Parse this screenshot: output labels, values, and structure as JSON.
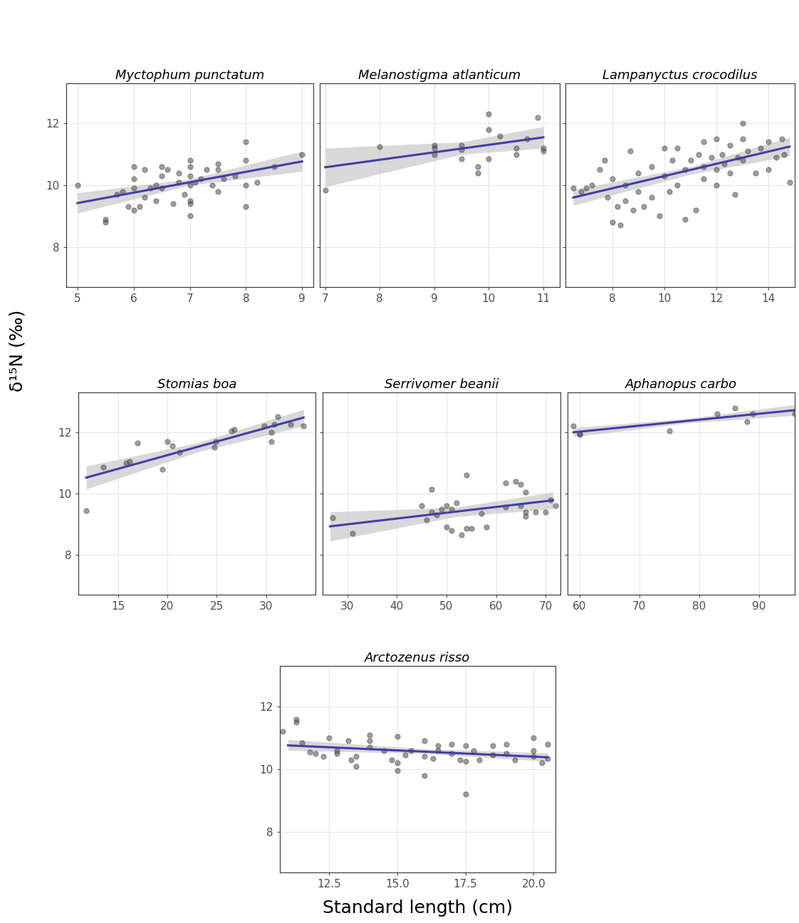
{
  "ylabel": "δ¹⁵N (‰)",
  "xlabel": "Standard length (cm)",
  "chart_data": [
    {
      "type": "scatter",
      "title": "Myctophum punctatum",
      "grid": true,
      "tick_labels": true,
      "xlim": [
        4.8,
        9.2
      ],
      "xticks": [
        5,
        6,
        7,
        8,
        9
      ],
      "ylim": [
        6.7,
        13.3
      ],
      "yticks": [
        8,
        10,
        12
      ],
      "series": [
        {
          "type": "area",
          "color": "#c8c8c8",
          "x": [
            5,
            7,
            9
          ],
          "lower": [
            9.1,
            10.0,
            10.45
          ],
          "upper": [
            9.75,
            10.2,
            11.1
          ]
        },
        {
          "type": "scatter",
          "color": "#4d4d4d",
          "marker": "o",
          "x": [
            5.0,
            5.5,
            5.5,
            5.7,
            5.8,
            5.9,
            6.0,
            6.0,
            6.0,
            6.0,
            6.1,
            6.2,
            6.2,
            6.3,
            6.4,
            6.4,
            6.5,
            6.5,
            6.5,
            6.6,
            6.7,
            6.8,
            6.8,
            6.9,
            7.0,
            7.0,
            7.0,
            7.0,
            7.0,
            7.0,
            7.0,
            7.1,
            7.2,
            7.3,
            7.4,
            7.5,
            7.5,
            7.5,
            7.6,
            7.8,
            8.0,
            8.0,
            8.0,
            8.0,
            8.2,
            8.5,
            9.0
          ],
          "values": [
            10.0,
            8.8,
            8.9,
            9.7,
            9.8,
            9.3,
            9.2,
            9.9,
            10.2,
            10.6,
            9.3,
            10.5,
            9.6,
            9.9,
            10.0,
            9.5,
            10.6,
            10.3,
            9.9,
            10.5,
            9.4,
            10.1,
            10.4,
            9.7,
            10.8,
            10.6,
            10.3,
            10.0,
            9.5,
            9.0,
            9.4,
            10.1,
            10.2,
            10.5,
            10.0,
            10.7,
            10.5,
            9.8,
            10.2,
            10.3,
            11.4,
            10.8,
            10.0,
            9.3,
            10.1,
            10.6,
            11.0
          ]
        },
        {
          "type": "line",
          "color": "#3f3fa8",
          "line_style": "solid",
          "x": [
            5,
            9
          ],
          "values": [
            9.42,
            10.77
          ]
        }
      ]
    },
    {
      "type": "scatter",
      "title": "Melanostigma atlanticum",
      "grid": true,
      "tick_labels": "x",
      "xlim": [
        6.9,
        11.3
      ],
      "xticks": [
        7,
        8,
        9,
        10,
        11
      ],
      "ylim": [
        6.7,
        13.3
      ],
      "yticks": [
        8,
        10,
        12
      ],
      "series": [
        {
          "type": "area",
          "color": "#c8c8c8",
          "x": [
            7,
            9.5,
            11
          ],
          "lower": [
            9.95,
            11.0,
            11.2
          ],
          "upper": [
            11.2,
            11.4,
            11.9
          ]
        },
        {
          "type": "scatter",
          "color": "#4d4d4d",
          "marker": "o",
          "x": [
            7.0,
            8.0,
            9.0,
            9.0,
            9.0,
            9.5,
            9.5,
            9.5,
            9.8,
            9.8,
            10.0,
            10.0,
            10.0,
            10.2,
            10.5,
            10.5,
            10.7,
            10.9,
            11.0,
            11.0
          ],
          "values": [
            9.85,
            11.25,
            11.3,
            11.2,
            11.0,
            11.3,
            11.15,
            10.85,
            10.6,
            10.4,
            12.3,
            11.8,
            10.85,
            11.6,
            11.2,
            11.0,
            11.5,
            12.2,
            11.2,
            11.1
          ]
        },
        {
          "type": "line",
          "color": "#3f3fa8",
          "line_style": "solid",
          "x": [
            7,
            11
          ],
          "values": [
            10.58,
            11.55
          ]
        }
      ]
    },
    {
      "type": "scatter",
      "title": "Lampanyctus crocodilus",
      "grid": true,
      "tick_labels": "x",
      "xlim": [
        6.2,
        15.0
      ],
      "xticks": [
        8,
        10,
        12,
        14
      ],
      "ylim": [
        6.7,
        13.3
      ],
      "yticks": [
        8,
        10,
        12
      ],
      "series": [
        {
          "type": "area",
          "color": "#c8c8c8",
          "x": [
            6.5,
            11,
            14.8
          ],
          "lower": [
            9.35,
            10.35,
            10.95
          ],
          "upper": [
            9.85,
            10.6,
            11.55
          ]
        },
        {
          "type": "scatter",
          "color": "#4d4d4d",
          "marker": "o",
          "x": [
            6.5,
            6.8,
            7.0,
            7.2,
            7.5,
            7.7,
            7.8,
            8.0,
            8.0,
            8.2,
            8.3,
            8.5,
            8.5,
            8.7,
            8.8,
            9.0,
            9.0,
            9.2,
            9.5,
            9.5,
            9.8,
            10.0,
            10.0,
            10.2,
            10.3,
            10.5,
            10.5,
            10.8,
            10.8,
            11.0,
            11.2,
            11.3,
            11.5,
            11.5,
            11.5,
            11.8,
            12.0,
            12.0,
            12.0,
            12.2,
            12.3,
            12.5,
            12.5,
            12.7,
            12.8,
            13.0,
            13.0,
            13.0,
            13.2,
            13.5,
            13.7,
            14.0,
            14.0,
            14.3,
            14.5,
            14.6,
            14.8
          ],
          "values": [
            9.9,
            9.8,
            9.9,
            10.0,
            10.5,
            10.8,
            9.6,
            8.8,
            10.2,
            9.3,
            8.7,
            9.5,
            10.0,
            11.1,
            9.2,
            9.8,
            10.4,
            9.3,
            9.6,
            10.6,
            9.0,
            10.3,
            11.2,
            9.8,
            10.8,
            11.2,
            10.0,
            8.9,
            10.5,
            10.8,
            9.2,
            11.0,
            10.6,
            11.4,
            10.2,
            10.9,
            11.5,
            10.5,
            10.0,
            11.0,
            10.7,
            11.3,
            10.4,
            9.7,
            10.9,
            12.0,
            11.5,
            10.8,
            11.1,
            10.4,
            11.2,
            11.4,
            10.5,
            10.9,
            11.5,
            11.0,
            10.1
          ]
        },
        {
          "type": "line",
          "color": "#3f3fa8",
          "line_style": "solid",
          "x": [
            6.5,
            14.8
          ],
          "values": [
            9.6,
            11.25
          ]
        }
      ]
    },
    {
      "type": "scatter",
      "title": "Stomias boa",
      "grid": true,
      "tick_labels": true,
      "xlim": [
        11,
        35
      ],
      "xticks": [
        15,
        20,
        25,
        30
      ],
      "ylim": [
        6.7,
        13.3
      ],
      "yticks": [
        8,
        10,
        12
      ],
      "series": [
        {
          "type": "area",
          "color": "#c8c8c8",
          "x": [
            11.8,
            23,
            33.8
          ],
          "lower": [
            10.15,
            11.35,
            12.2
          ],
          "upper": [
            10.9,
            11.65,
            12.75
          ]
        },
        {
          "type": "scatter",
          "color": "#4d4d4d",
          "marker": "o",
          "x": [
            11.8,
            13.5,
            15.8,
            16.2,
            17.0,
            19.5,
            20.0,
            20.5,
            21.2,
            24.8,
            24.9,
            26.5,
            26.8,
            29.8,
            30.5,
            30.5,
            30.8,
            31.2,
            32.5,
            33.8
          ],
          "values": [
            9.45,
            10.85,
            11.0,
            11.05,
            11.65,
            10.8,
            11.7,
            11.55,
            11.35,
            11.5,
            11.7,
            12.05,
            12.1,
            12.2,
            11.7,
            12.0,
            12.25,
            12.5,
            12.25,
            12.2
          ]
        },
        {
          "type": "line",
          "color": "#3f3fa8",
          "line_style": "solid",
          "x": [
            11.8,
            33.8
          ],
          "values": [
            10.52,
            12.48
          ]
        }
      ]
    },
    {
      "type": "scatter",
      "title": "Serrivomer beanii",
      "grid": true,
      "tick_labels": "x",
      "xlim": [
        25,
        73
      ],
      "xticks": [
        30,
        40,
        50,
        60,
        70
      ],
      "ylim": [
        6.7,
        13.3
      ],
      "yticks": [
        8,
        10,
        12
      ],
      "series": [
        {
          "type": "area",
          "color": "#c8c8c8",
          "x": [
            26.5,
            52,
            71.5
          ],
          "lower": [
            8.45,
            9.25,
            9.5
          ],
          "upper": [
            9.4,
            9.55,
            10.05
          ]
        },
        {
          "type": "scatter",
          "color": "#4d4d4d",
          "marker": "o",
          "x": [
            27,
            31,
            45,
            46,
            47,
            47,
            48,
            49,
            50,
            50,
            51,
            51,
            52,
            53,
            54,
            54,
            55,
            57,
            58,
            62,
            62,
            64,
            65,
            65,
            66,
            66,
            66,
            68,
            70,
            71,
            72
          ],
          "values": [
            9.2,
            8.7,
            9.6,
            9.15,
            10.15,
            9.4,
            9.3,
            9.5,
            9.6,
            8.9,
            8.8,
            9.5,
            9.7,
            8.65,
            10.6,
            8.85,
            8.85,
            9.35,
            8.9,
            10.35,
            9.55,
            10.4,
            10.3,
            9.6,
            10.05,
            9.4,
            9.25,
            9.4,
            9.4,
            9.8,
            9.6
          ]
        },
        {
          "type": "line",
          "color": "#3f3fa8",
          "line_style": "solid",
          "x": [
            26.5,
            71.5
          ],
          "values": [
            8.93,
            9.78
          ]
        }
      ]
    },
    {
      "type": "scatter",
      "title": "Aphanopus carbo",
      "grid": true,
      "tick_labels": "x",
      "xlim": [
        58,
        96
      ],
      "xticks": [
        60,
        70,
        80,
        90
      ],
      "ylim": [
        6.7,
        13.3
      ],
      "yticks": [
        8,
        10,
        12
      ],
      "series": [
        {
          "type": "area",
          "color": "#c8c8c8",
          "x": [
            59,
            78,
            96
          ],
          "lower": [
            11.85,
            12.3,
            12.55
          ],
          "upper": [
            12.15,
            12.45,
            12.9
          ]
        },
        {
          "type": "scatter",
          "color": "#4d4d4d",
          "marker": "o",
          "x": [
            59,
            60,
            60,
            75,
            83,
            86,
            88,
            89,
            96
          ],
          "values": [
            12.2,
            11.95,
            11.92,
            12.05,
            12.6,
            12.8,
            12.35,
            12.6,
            12.6
          ]
        },
        {
          "type": "line",
          "color": "#3f3fa8",
          "line_style": "solid",
          "x": [
            59,
            96
          ],
          "values": [
            12.0,
            12.72
          ]
        }
      ]
    },
    {
      "type": "scatter",
      "title": "Arctozenus risso",
      "grid": true,
      "tick_labels": true,
      "xlim": [
        10.7,
        20.8
      ],
      "xticks": [
        12.5,
        {
          "value": 15,
          "label": "15.0"
        },
        17.5,
        {
          "value": 20,
          "label": "20.0"
        }
      ],
      "ylim": [
        6.7,
        13.3
      ],
      "yticks": [
        8,
        10,
        12
      ],
      "series": [
        {
          "type": "area",
          "color": "#c8c8c8",
          "x": [
            11,
            16,
            20.5
          ],
          "lower": [
            10.6,
            10.5,
            10.25
          ],
          "upper": [
            10.95,
            10.65,
            10.52
          ]
        },
        {
          "type": "scatter",
          "color": "#4d4d4d",
          "marker": "o",
          "x": [
            10.8,
            11.3,
            11.3,
            11.5,
            11.8,
            12.0,
            12.3,
            12.5,
            12.8,
            12.8,
            13.2,
            13.3,
            13.5,
            13.5,
            14.0,
            14.0,
            14.0,
            14.5,
            14.8,
            15.0,
            15.0,
            15.0,
            15.3,
            15.5,
            16.0,
            16.0,
            16.0,
            16.3,
            16.5,
            16.5,
            17.0,
            17.0,
            17.3,
            17.5,
            17.5,
            17.5,
            17.8,
            18.0,
            18.5,
            18.5,
            19.0,
            19.0,
            19.3,
            20.0,
            20.0,
            20.0,
            20.3,
            20.5,
            20.5
          ],
          "values": [
            11.2,
            11.6,
            11.5,
            10.85,
            10.55,
            10.5,
            10.4,
            11.0,
            10.6,
            10.5,
            10.9,
            10.3,
            10.1,
            10.4,
            11.1,
            10.9,
            10.7,
            10.6,
            10.3,
            11.05,
            10.2,
            9.95,
            10.45,
            10.6,
            10.9,
            10.4,
            9.8,
            10.35,
            10.75,
            10.6,
            10.8,
            10.5,
            10.3,
            10.75,
            10.25,
            9.2,
            10.6,
            10.3,
            10.75,
            10.45,
            10.8,
            10.5,
            10.3,
            11.0,
            10.6,
            10.4,
            10.2,
            10.8,
            10.35
          ]
        },
        {
          "type": "line",
          "color": "#3f3fa8",
          "line_style": "solid",
          "x": [
            11,
            20.5
          ],
          "values": [
            10.76,
            10.38
          ]
        }
      ]
    }
  ]
}
